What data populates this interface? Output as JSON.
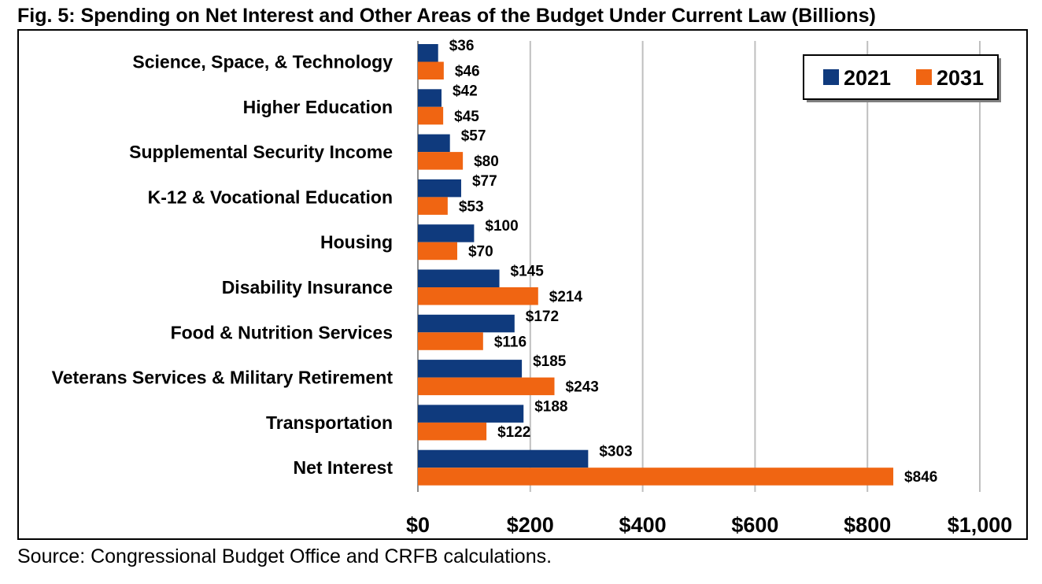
{
  "title": "Fig. 5: Spending on Net Interest and Other Areas of the Budget Under Current Law (Billions)",
  "source": "Source: Congressional Budget Office and CRFB calculations.",
  "colors": {
    "series_2021": "#0f3a7d",
    "series_2031": "#f06512",
    "grid": "#bfbfbf"
  },
  "chart_data": {
    "type": "bar",
    "orientation": "horizontal",
    "title": "Fig. 5: Spending on Net Interest and Other Areas of the Budget Under Current Law (Billions)",
    "categories": [
      "Science, Space, & Technology",
      "Higher Education",
      "Supplemental Security Income",
      "K-12 & Vocational Education",
      "Housing",
      "Disability Insurance",
      "Food & Nutrition Services",
      "Veterans Services & Military Retirement",
      "Transportation",
      "Net Interest"
    ],
    "series": [
      {
        "name": "2021",
        "values": [
          36,
          42,
          57,
          77,
          100,
          145,
          172,
          185,
          188,
          303
        ],
        "labels": [
          "$36",
          "$42",
          "$57",
          "$77",
          "$100",
          "$145",
          "$172",
          "$185",
          "$188",
          "$303"
        ]
      },
      {
        "name": "2031",
        "values": [
          46,
          45,
          80,
          53,
          70,
          214,
          116,
          243,
          122,
          846
        ],
        "labels": [
          "$46",
          "$45",
          "$80",
          "$53",
          "$70",
          "$214",
          "$116",
          "$243",
          "$122",
          "$846"
        ]
      }
    ],
    "xlim": [
      0,
      1000
    ],
    "xticks": [
      0,
      200,
      400,
      600,
      800,
      1000
    ],
    "xtick_labels": [
      "$0",
      "$200",
      "$400",
      "$600",
      "$800",
      "$1,000"
    ],
    "grid": true,
    "legend_position": "top-right"
  }
}
